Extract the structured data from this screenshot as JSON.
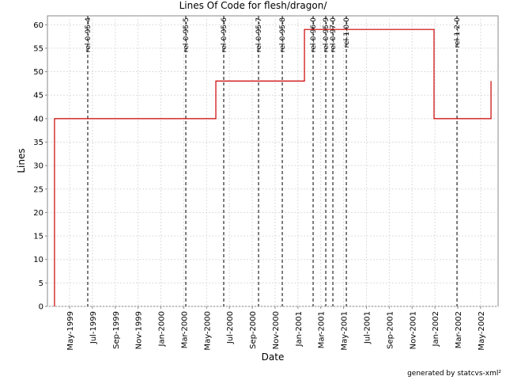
{
  "chart_data": {
    "type": "line",
    "title": "Lines Of Code for flesh/dragon/",
    "x_label": "Date",
    "y_label": "Lines",
    "footer": "generated by statcvs-xml²",
    "series": [
      {
        "name": "Lines",
        "color": "#cc0000",
        "x": [
          2.68,
          2.68,
          16.81,
          16.81,
          24.57,
          24.57,
          35.92,
          35.92,
          40.91,
          40.91
        ],
        "values": [
          0,
          40,
          40,
          48,
          48,
          59,
          59,
          40,
          40,
          48
        ]
      }
    ],
    "markers": [
      {
        "label": "rel-0-95-4",
        "x": 5.59
      },
      {
        "label": "rel-0-95-5",
        "x": 14.18
      },
      {
        "label": "rel-0-95-6",
        "x": 17.5
      },
      {
        "label": "rel-0-95-7",
        "x": 20.55
      },
      {
        "label": "rel-0-95-8",
        "x": 22.63
      },
      {
        "label": "rel-0-96-0",
        "x": 25.33
      },
      {
        "label": "rel-0-95-9",
        "x": 26.44
      },
      {
        "label": "rel-0-97-0",
        "x": 27.06
      },
      {
        "label": "rel-1-0-0",
        "x": 28.24
      },
      {
        "label": "rel-1-2-0",
        "x": 37.93
      }
    ],
    "marker_color": "#555555",
    "xlim": [
      2.06,
      41.53
    ],
    "xticks": [
      {
        "value": 4,
        "label": "May-1999"
      },
      {
        "value": 6,
        "label": "Jul-1999"
      },
      {
        "value": 8,
        "label": "Sep-1999"
      },
      {
        "value": 10,
        "label": "Nov-1999"
      },
      {
        "value": 12,
        "label": "Jan-2000"
      },
      {
        "value": 14,
        "label": "Mar-2000"
      },
      {
        "value": 16,
        "label": "May-2000"
      },
      {
        "value": 18,
        "label": "Jul-2000"
      },
      {
        "value": 20,
        "label": "Sep-2000"
      },
      {
        "value": 22,
        "label": "Nov-2000"
      },
      {
        "value": 24,
        "label": "Jan-2001"
      },
      {
        "value": 26,
        "label": "Mar-2001"
      },
      {
        "value": 28,
        "label": "May-2001"
      },
      {
        "value": 30,
        "label": "Jul-2001"
      },
      {
        "value": 32,
        "label": "Sep-2001"
      },
      {
        "value": 34,
        "label": "Nov-2001"
      },
      {
        "value": 36,
        "label": "Jan-2002"
      },
      {
        "value": 38,
        "label": "Mar-2002"
      },
      {
        "value": 40,
        "label": "May-2002"
      }
    ],
    "ylim": [
      0,
      61.9
    ],
    "yticks": [
      0,
      5,
      10,
      15,
      20,
      25,
      30,
      35,
      40,
      45,
      50,
      55,
      60
    ],
    "grid": true
  }
}
